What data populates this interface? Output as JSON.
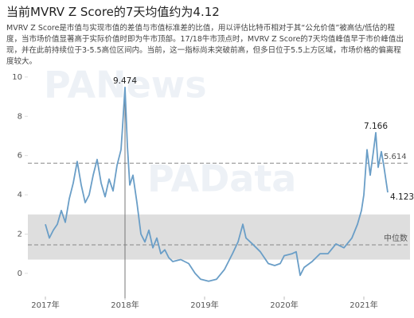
{
  "chart_data": {
    "type": "line",
    "title": "当前MVRV Z Score的7天均值约为4.12",
    "subtitle": "MVRV Z Score是市值与实现市值的差值与市值标准差的比值，用以评估比特币相对于其“公允价值”被高估/低估的程度，当市场价值显著高于实际价值时即为牛市顶部。17/18牛市顶点时，MVRV Z Score的7天均值峰值早于市价峰值出现，并在此前持续位于3-5.5高位区间内。当前，这一指标尚未突破前高，但多日位于5.5上方区域，市场价格的偏离程度较大。",
    "watermarks": [
      "PANews",
      "PAData"
    ],
    "x": [
      2017.0,
      2017.05,
      2017.1,
      2017.15,
      2017.2,
      2017.25,
      2017.3,
      2017.35,
      2017.4,
      2017.45,
      2017.5,
      2017.55,
      2017.6,
      2017.65,
      2017.7,
      2017.75,
      2017.8,
      2017.85,
      2017.9,
      2017.95,
      2017.97,
      2018.0,
      2018.03,
      2018.06,
      2018.1,
      2018.15,
      2018.2,
      2018.25,
      2018.3,
      2018.35,
      2018.4,
      2018.45,
      2018.5,
      2018.55,
      2018.6,
      2018.7,
      2018.8,
      2018.88,
      2018.95,
      2019.05,
      2019.15,
      2019.25,
      2019.35,
      2019.42,
      2019.48,
      2019.52,
      2019.6,
      2019.7,
      2019.8,
      2019.88,
      2019.95,
      2020.0,
      2020.1,
      2020.15,
      2020.2,
      2020.25,
      2020.35,
      2020.45,
      2020.55,
      2020.65,
      2020.75,
      2020.85,
      2020.92,
      2020.97,
      2021.0,
      2021.04,
      2021.08,
      2021.12,
      2021.15,
      2021.18,
      2021.22,
      2021.25,
      2021.3
    ],
    "series": [
      {
        "name": "MVRV Z Score",
        "color": "#6a9ec7",
        "values": [
          2.5,
          1.8,
          2.2,
          2.5,
          3.2,
          2.6,
          3.8,
          4.6,
          5.7,
          4.5,
          3.6,
          4.0,
          5.0,
          5.8,
          4.6,
          3.9,
          4.8,
          4.2,
          5.5,
          6.3,
          7.5,
          9.474,
          6.5,
          4.5,
          5.0,
          3.6,
          2.0,
          1.6,
          2.2,
          1.3,
          1.8,
          1.0,
          1.2,
          0.8,
          0.6,
          0.7,
          0.5,
          0.0,
          -0.3,
          -0.4,
          -0.3,
          0.2,
          1.0,
          1.6,
          2.5,
          1.8,
          1.5,
          1.1,
          0.5,
          0.4,
          0.5,
          0.9,
          1.0,
          1.1,
          -0.1,
          0.3,
          0.6,
          1.0,
          1.0,
          1.5,
          1.3,
          1.8,
          2.5,
          3.2,
          4.0,
          6.3,
          5.0,
          6.2,
          7.166,
          5.4,
          6.2,
          5.5,
          4.123
        ]
      }
    ],
    "band": [
      0.7,
      3.0
    ],
    "reference_lines": [
      {
        "value": 5.614
      },
      {
        "value": 1.45,
        "label": "中位数"
      }
    ],
    "highlight_x": 2018.0,
    "labeled_points": [
      21,
      68,
      72
    ],
    "xlim": [
      2016.7,
      2021.58
    ],
    "xticks": [
      {
        "value": 2017,
        "label": "2017年"
      },
      {
        "value": 2018,
        "label": "2018年"
      },
      {
        "value": 2019,
        "label": "2019年"
      },
      {
        "value": 2020,
        "label": "2020年"
      },
      {
        "value": 2021,
        "label": "2021年"
      }
    ],
    "ylim": [
      -1.1,
      10.4
    ],
    "yticks": [
      0,
      2,
      4,
      6,
      8,
      10
    ]
  }
}
